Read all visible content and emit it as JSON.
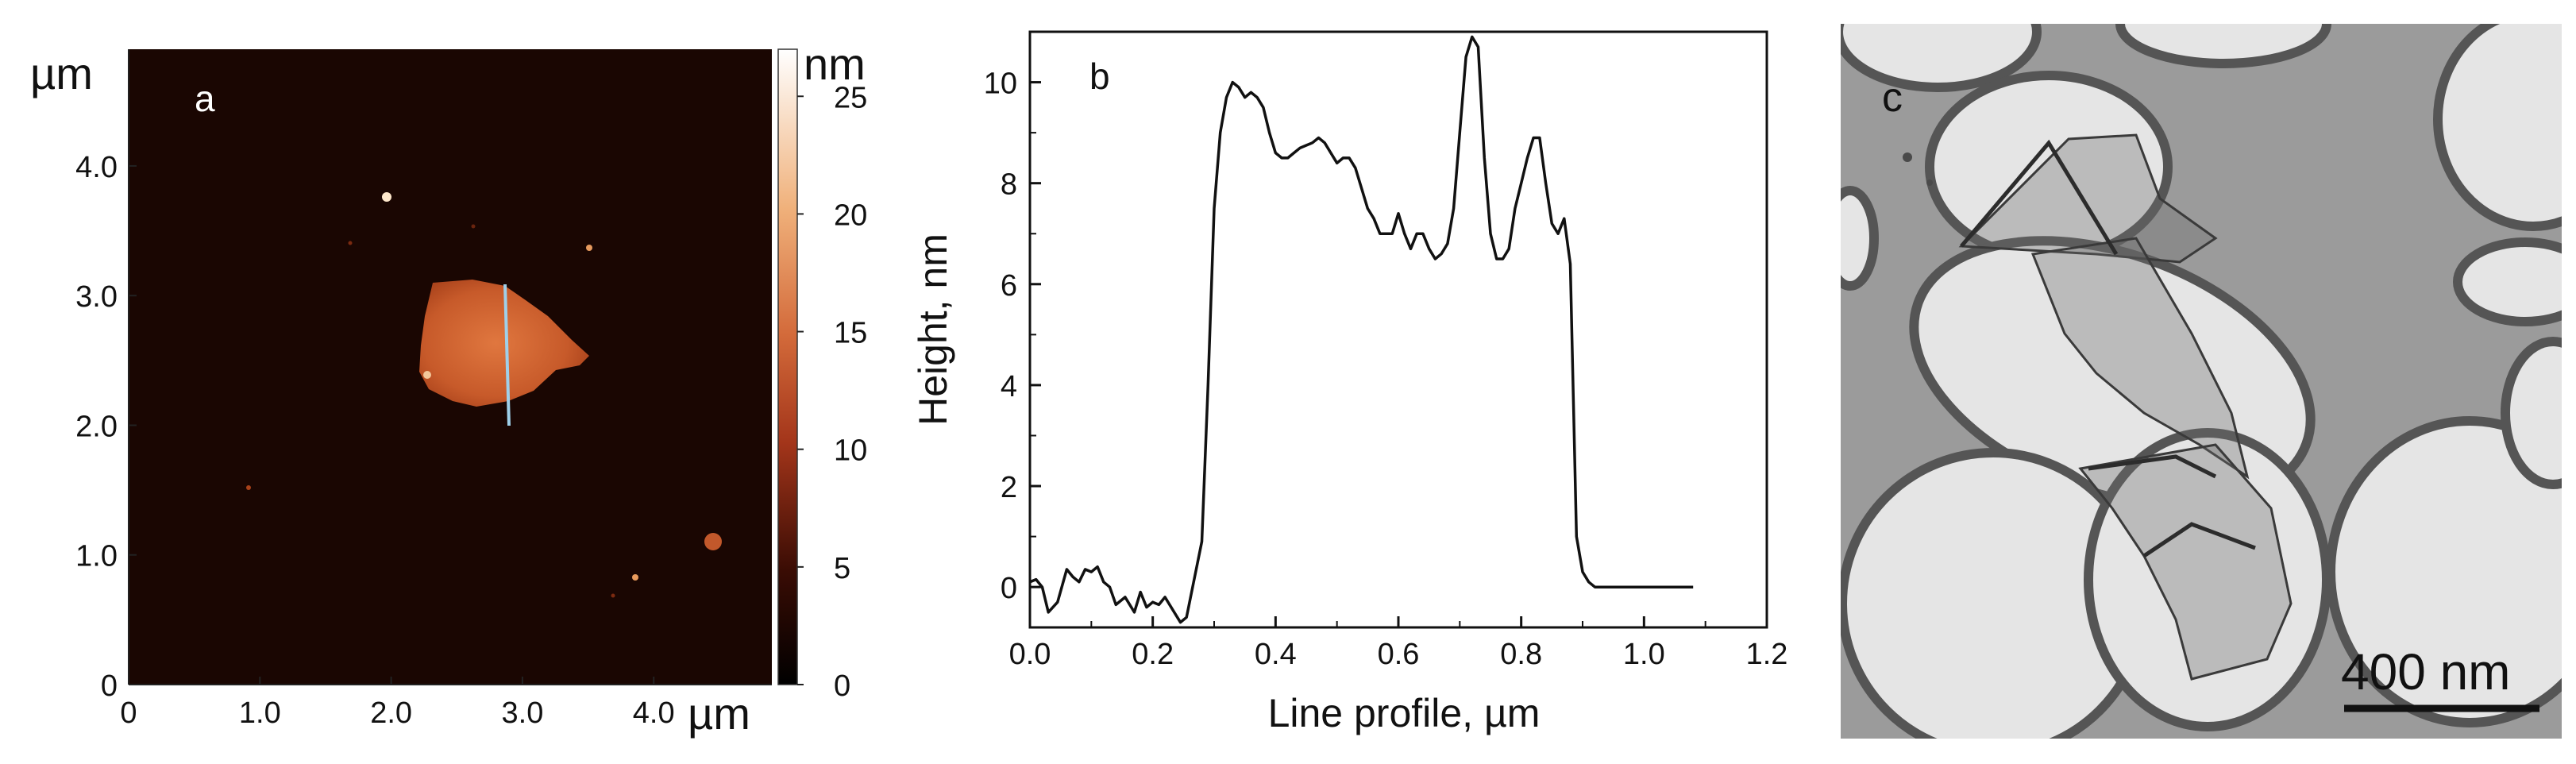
{
  "panel_a": {
    "label": "a",
    "axis_unit_y": "µm",
    "axis_unit_x": "µm",
    "y_ticks": [
      "0",
      "1.0",
      "2.0",
      "3.0",
      "4.0"
    ],
    "x_ticks": [
      "0",
      "1.0",
      "2.0",
      "3.0",
      "4.0"
    ],
    "colorbar_unit": "nm",
    "colorbar_ticks": [
      "0",
      "5",
      "10",
      "15",
      "20",
      "25"
    ],
    "image_range_um": [
      0,
      4.9
    ],
    "colorbar_range_nm": [
      0,
      27
    ],
    "colors": {
      "dark": "#1a0602",
      "mid": "#b8471e",
      "light": "#f6d2a7",
      "line": "#9fd0ea"
    }
  },
  "chart_data": {
    "type": "line",
    "label": "b",
    "title": "",
    "xlabel": "Line profile, µm",
    "ylabel": "Height, nm",
    "xlim": [
      0,
      1.2
    ],
    "ylim": [
      -0.8,
      11
    ],
    "x_ticks": [
      0.0,
      0.2,
      0.4,
      0.6,
      0.8,
      1.0,
      1.2
    ],
    "y_ticks": [
      0,
      2,
      4,
      6,
      8,
      10
    ],
    "x_tick_labels": [
      "0.0",
      "0.2",
      "0.4",
      "0.6",
      "0.8",
      "1.0",
      "1.2"
    ],
    "y_tick_labels": [
      "0",
      "2",
      "4",
      "6",
      "8",
      "10"
    ],
    "grid": false,
    "series": [
      {
        "x": [
          0.0,
          0.01,
          0.02,
          0.03,
          0.045,
          0.06,
          0.07,
          0.08,
          0.09,
          0.1,
          0.11,
          0.12,
          0.13,
          0.14,
          0.155,
          0.17,
          0.18,
          0.19,
          0.2,
          0.21,
          0.22,
          0.235,
          0.245,
          0.255,
          0.265,
          0.28,
          0.29,
          0.3,
          0.31,
          0.32,
          0.33,
          0.34,
          0.35,
          0.36,
          0.37,
          0.38,
          0.39,
          0.4,
          0.41,
          0.42,
          0.43,
          0.44,
          0.45,
          0.46,
          0.47,
          0.48,
          0.49,
          0.5,
          0.51,
          0.52,
          0.53,
          0.54,
          0.55,
          0.56,
          0.57,
          0.58,
          0.59,
          0.6,
          0.61,
          0.62,
          0.63,
          0.64,
          0.65,
          0.66,
          0.67,
          0.68,
          0.69,
          0.7,
          0.71,
          0.72,
          0.73,
          0.74,
          0.75,
          0.76,
          0.77,
          0.78,
          0.79,
          0.8,
          0.81,
          0.82,
          0.83,
          0.84,
          0.85,
          0.86,
          0.87,
          0.88,
          0.89,
          0.9,
          0.91,
          0.92,
          0.93,
          0.94,
          0.95,
          0.96,
          0.97,
          0.98,
          0.99,
          1.0,
          1.01,
          1.02,
          1.03,
          1.04,
          1.05,
          1.06,
          1.07,
          1.08
        ],
        "y": [
          0.1,
          0.15,
          0.0,
          -0.5,
          -0.3,
          0.35,
          0.2,
          0.1,
          0.35,
          0.3,
          0.4,
          0.1,
          0.0,
          -0.35,
          -0.2,
          -0.5,
          -0.1,
          -0.4,
          -0.3,
          -0.35,
          -0.2,
          -0.5,
          -0.7,
          -0.6,
          0.0,
          0.9,
          4.0,
          7.5,
          9.0,
          9.7,
          10.0,
          9.9,
          9.7,
          9.8,
          9.7,
          9.5,
          9.0,
          8.6,
          8.5,
          8.5,
          8.6,
          8.7,
          8.75,
          8.8,
          8.9,
          8.8,
          8.6,
          8.4,
          8.5,
          8.5,
          8.3,
          7.9,
          7.5,
          7.3,
          7.0,
          7.0,
          7.0,
          7.4,
          7.0,
          6.7,
          7.0,
          7.0,
          6.7,
          6.5,
          6.6,
          6.8,
          7.5,
          9.0,
          10.5,
          10.9,
          10.7,
          8.5,
          7.0,
          6.5,
          6.5,
          6.7,
          7.5,
          8.0,
          8.5,
          8.9,
          8.9,
          8.0,
          7.2,
          7.0,
          7.3,
          6.4,
          1.0,
          0.3,
          0.1,
          0.0,
          0.0,
          0.0,
          0.0,
          0.0,
          0.0,
          0.0,
          0.0,
          0.0,
          0.0,
          0.0,
          0.0,
          0.0,
          0.0,
          0.0,
          0.0,
          0.0
        ]
      }
    ]
  },
  "panel_c": {
    "label": "c",
    "scalebar_label": "400 nm",
    "colors": {
      "background": "#9b9b9b",
      "hole": "#e5e5e5",
      "rim": "#555555",
      "flake": "#6f6f6f"
    }
  }
}
